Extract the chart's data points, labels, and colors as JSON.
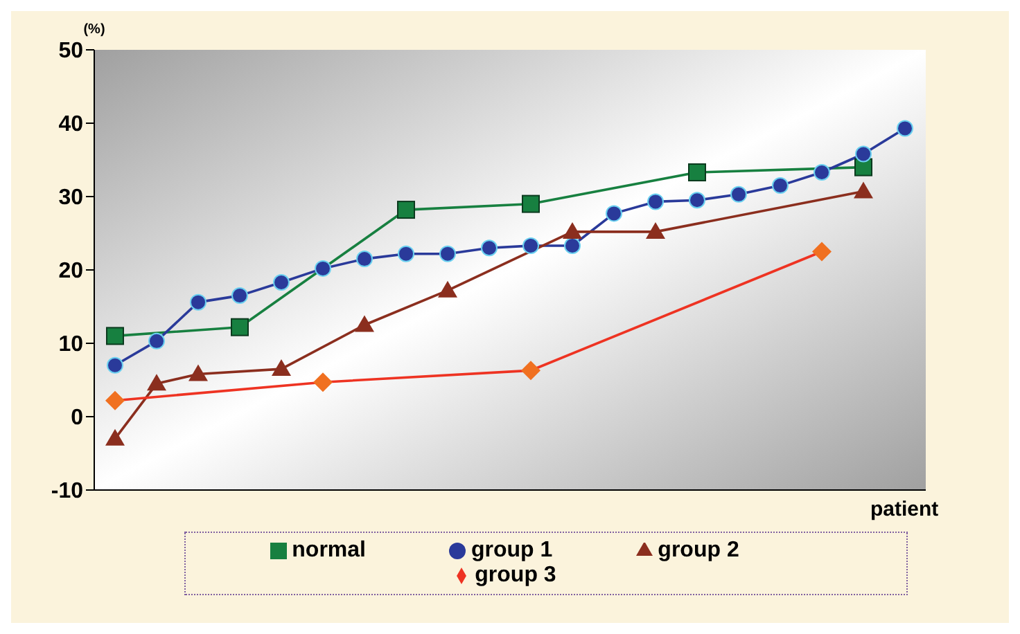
{
  "chart_data": {
    "type": "line",
    "ylabel": "(%)",
    "xlabel": "patient",
    "categories": [
      null,
      null,
      null,
      null,
      null,
      null,
      null,
      null,
      null,
      null,
      null,
      null,
      null,
      null,
      null,
      null,
      null,
      null,
      null,
      null
    ],
    "series": [
      {
        "name": "normal",
        "color": "#178040",
        "marker": "square",
        "values": [
          11,
          null,
          null,
          12.2,
          null,
          null,
          null,
          28.2,
          null,
          null,
          29,
          null,
          null,
          null,
          33.3,
          null,
          null,
          null,
          34,
          null
        ]
      },
      {
        "name": "group 1",
        "color": "#2a3a9a",
        "marker": "circle",
        "values": [
          7,
          10.3,
          15.6,
          16.5,
          18.3,
          20.2,
          21.5,
          22.2,
          22.2,
          23,
          23.3,
          23.3,
          27.7,
          29.3,
          29.5,
          30.3,
          31.5,
          33.3,
          35.8,
          39.3
        ]
      },
      {
        "name": "group 2",
        "color": "#8b2e1e",
        "marker": "triangle",
        "values": [
          -3,
          4.5,
          5.8,
          null,
          6.5,
          null,
          12.5,
          null,
          17.2,
          null,
          null,
          25.2,
          null,
          25.2,
          null,
          null,
          null,
          null,
          30.7,
          null
        ]
      },
      {
        "name": "group 3",
        "color": "#ee3322",
        "marker": "diamond",
        "values": [
          2.2,
          null,
          null,
          null,
          null,
          4.7,
          null,
          null,
          null,
          null,
          6.3,
          null,
          null,
          null,
          null,
          null,
          null,
          22.5,
          null,
          null
        ]
      }
    ],
    "ylim": [
      -10,
      50
    ],
    "yticks": [
      -10,
      0,
      10,
      20,
      30,
      40,
      50
    ],
    "grid": false,
    "legend": "bottom"
  }
}
